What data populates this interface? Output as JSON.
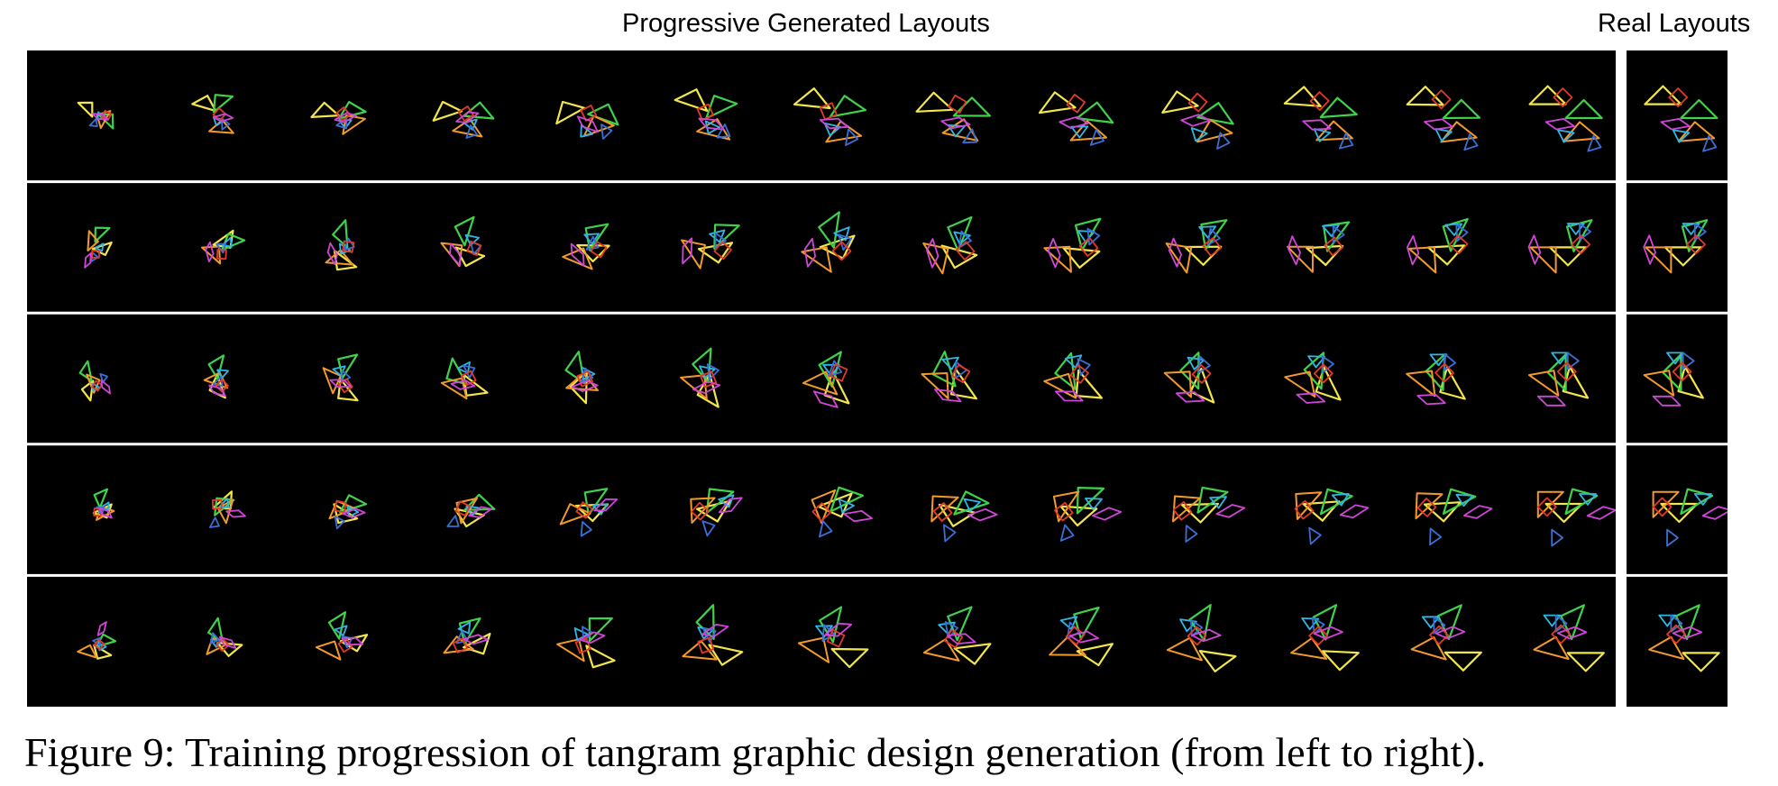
{
  "figure": {
    "header_generated": "Progressive Generated Layouts",
    "header_real": "Real Layouts",
    "caption": "Figure 9: Training progression of tangram graphic design generation (from left to right).",
    "rows": 5,
    "generated_steps": 13,
    "real_per_row": 1,
    "piece_colors": {
      "large_triangle_a": "#f2e64c",
      "large_triangle_b": "#3fd24a",
      "medium_triangle": "#f39a2c",
      "small_triangle_a": "#2fb7e6",
      "small_triangle_b": "#3a6fd8",
      "square": "#e23a2a",
      "parallelogram": "#cf46d8"
    }
  }
}
